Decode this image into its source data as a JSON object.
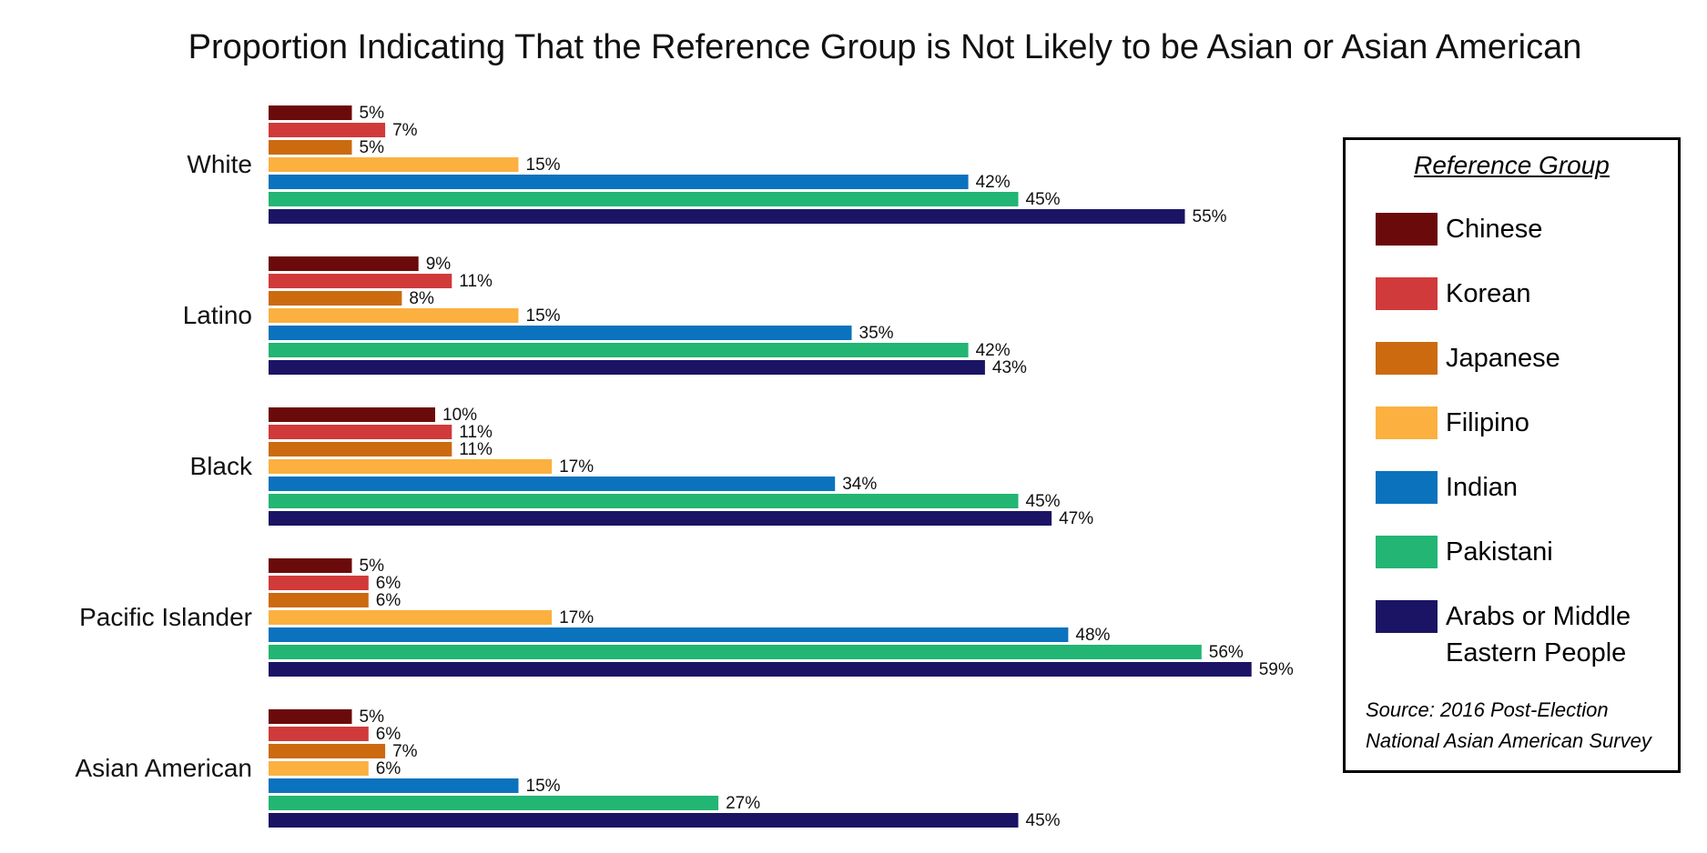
{
  "chart_data": {
    "type": "hbar",
    "title": "Proportion Indicating That the Reference Group is Not Likely to be Asian or Asian American",
    "categories": [
      "White",
      "Latino",
      "Black",
      "Pacific Islander",
      "Asian American"
    ],
    "legend_title": "Reference Group",
    "source": "Source: 2016 Post-Election National Asian American Survey",
    "legend": "right",
    "series": [
      {
        "name": "Chinese",
        "color": "#6b0a0a",
        "values": [
          5,
          9,
          10,
          5,
          5
        ],
        "value_labels": [
          "5%",
          "9%",
          "10%",
          "5%",
          "5%"
        ]
      },
      {
        "name": "Korean",
        "color": "#d13a3a",
        "values": [
          7,
          11,
          11,
          6,
          6
        ],
        "value_labels": [
          "7%",
          "11%",
          "11%",
          "6%",
          "6%"
        ]
      },
      {
        "name": "Japanese",
        "color": "#cc6a10",
        "values": [
          5,
          8,
          11,
          6,
          7
        ],
        "value_labels": [
          "5%",
          "8%",
          "11%",
          "6%",
          "7%"
        ]
      },
      {
        "name": "Filipino",
        "color": "#fbb040",
        "values": [
          15,
          15,
          17,
          17,
          6
        ],
        "value_labels": [
          "15%",
          "15%",
          "17%",
          "17%",
          "6%"
        ]
      },
      {
        "name": "Indian",
        "color": "#0b72bd",
        "values": [
          42,
          35,
          34,
          48,
          15
        ],
        "value_labels": [
          "42%",
          "35%",
          "34%",
          "48%",
          "15%"
        ]
      },
      {
        "name": "Pakistani",
        "color": "#22b573",
        "values": [
          45,
          42,
          45,
          56,
          27
        ],
        "value_labels": [
          "45%",
          "42%",
          "45%",
          "56%",
          "27%"
        ]
      },
      {
        "name": "Arabs or Middle Eastern People",
        "color": "#1b1464",
        "values": [
          55,
          43,
          47,
          59,
          45
        ],
        "value_labels": [
          "55%",
          "43%",
          "47%",
          "59%",
          "45%"
        ]
      }
    ]
  }
}
